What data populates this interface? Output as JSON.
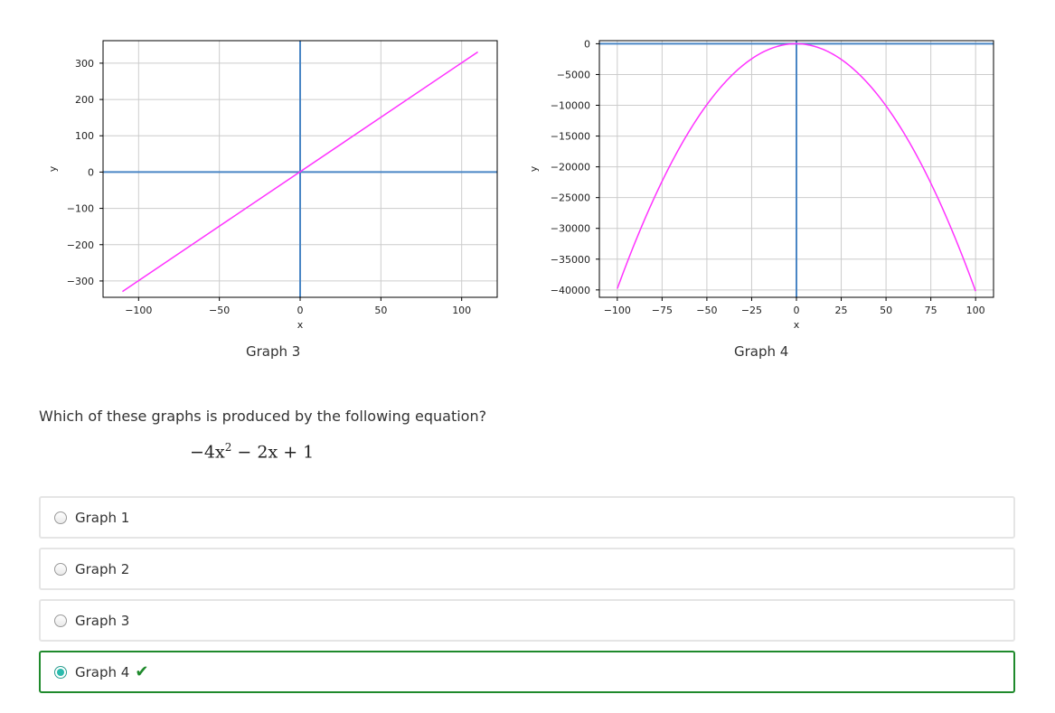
{
  "graphs": [
    {
      "caption": "Graph 3",
      "chart_data": {
        "type": "line",
        "xlabel": "x",
        "ylabel": "y",
        "xlim": [
          -122,
          122
        ],
        "ylim": [
          -345,
          362
        ],
        "xticks": [
          -100,
          -50,
          0,
          50,
          100
        ],
        "yticks": [
          300,
          200,
          100,
          0,
          -100,
          -200,
          -300
        ],
        "grid": true,
        "axis_color": "#4a86c5",
        "series": [
          {
            "color": "#ff33ff",
            "function": "3x+1",
            "x": [
              -110,
              110
            ],
            "y": [
              -329,
              331
            ]
          }
        ]
      }
    },
    {
      "caption": "Graph 4",
      "chart_data": {
        "type": "line",
        "xlabel": "x",
        "ylabel": "y",
        "xlim": [
          -110,
          110
        ],
        "ylim": [
          -41200,
          500
        ],
        "xticks": [
          -100,
          -75,
          -50,
          -25,
          0,
          25,
          50,
          75,
          100
        ],
        "yticks": [
          0,
          -5000,
          -10000,
          -15000,
          -20000,
          -25000,
          -30000,
          -35000,
          -40000
        ],
        "grid": true,
        "axis_color": "#4a86c5",
        "series": [
          {
            "color": "#ff33ff",
            "function": "-4x^2-2x+1",
            "xrange": [
              -100,
              100
            ]
          }
        ]
      }
    }
  ],
  "question": {
    "text": "Which of these graphs is produced by the following equation?",
    "equation_prefix": "−4x",
    "equation_power": "2",
    "equation_suffix": " − 2x + 1"
  },
  "options": [
    {
      "label": "Graph 1",
      "selected": false,
      "correct": false
    },
    {
      "label": "Graph 2",
      "selected": false,
      "correct": false
    },
    {
      "label": "Graph 3",
      "selected": false,
      "correct": false
    },
    {
      "label": "Graph 4",
      "selected": true,
      "correct": true,
      "check_icon": "✔"
    }
  ],
  "colors": {
    "grid": "#cccccc",
    "frame": "#000000",
    "correct_border": "#1f8a2c",
    "radio_selected": "#2bbbad"
  }
}
